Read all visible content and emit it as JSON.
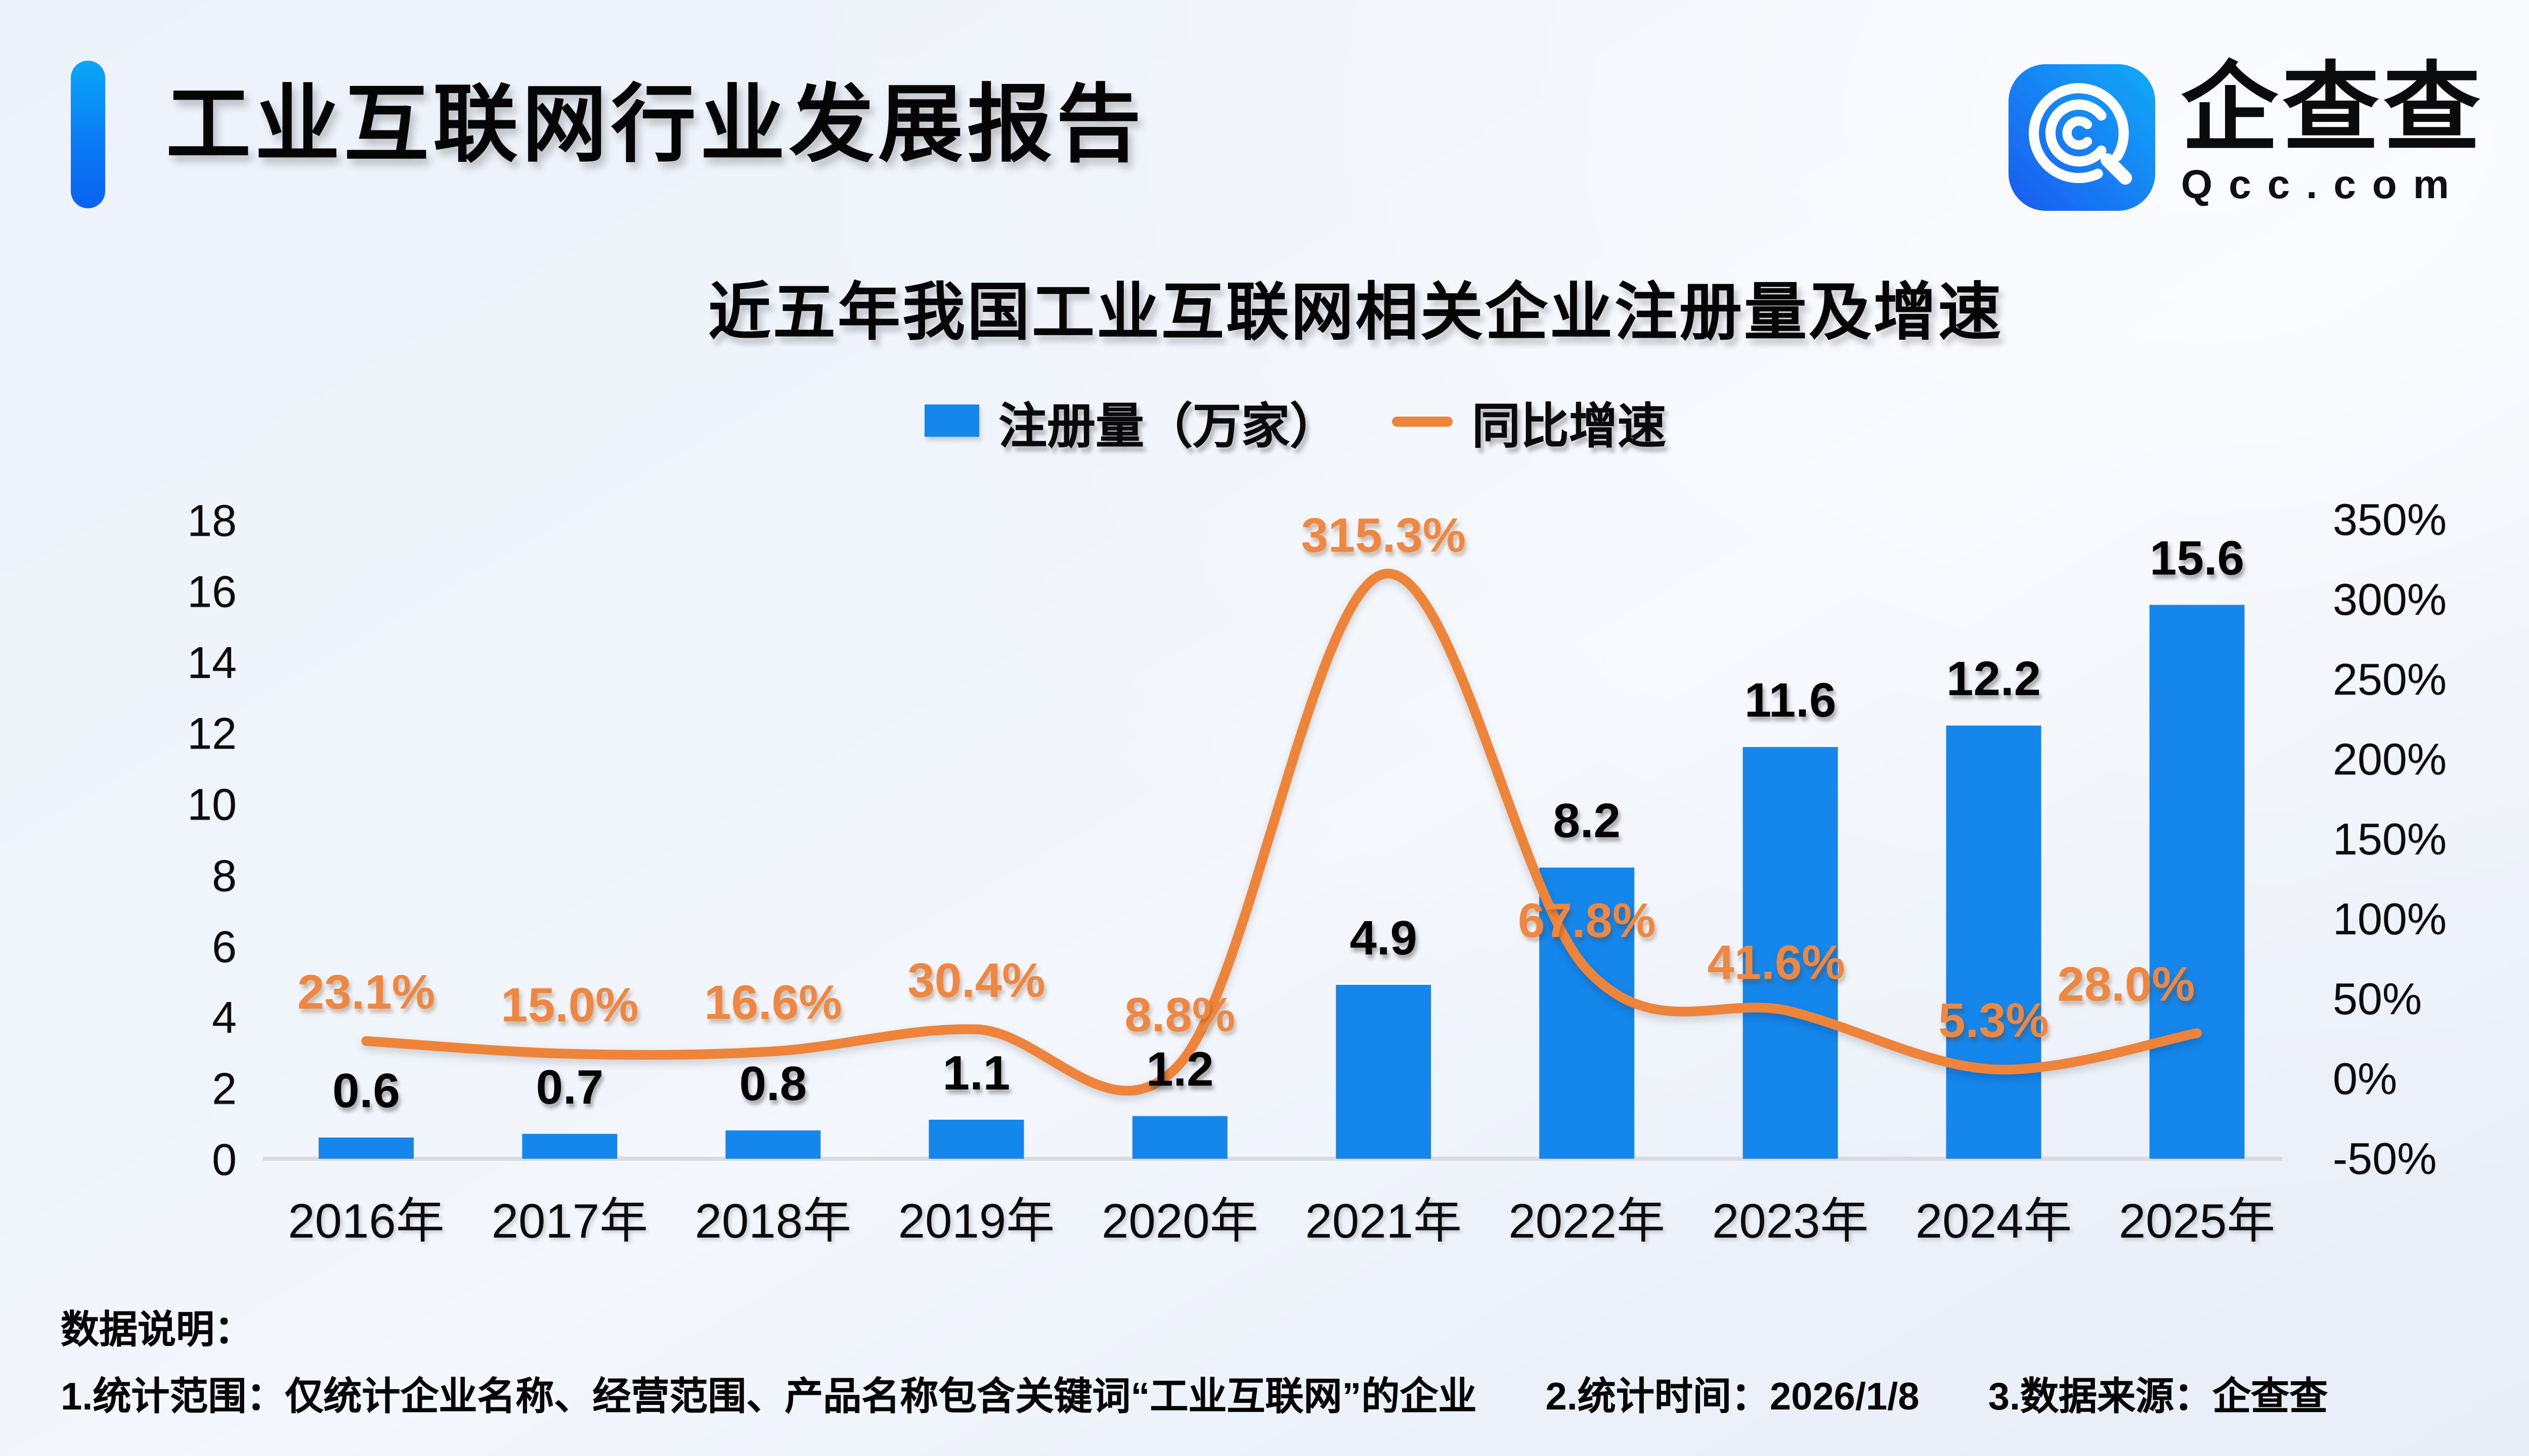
{
  "header": {
    "title": "工业互联网行业发展报告"
  },
  "logo": {
    "name": "企查查",
    "domain": "Qcc.com"
  },
  "chart_data": {
    "type": "combo-bar-line",
    "title": "近五年我国工业互联网相关企业注册量及增速",
    "categories": [
      "2016年",
      "2017年",
      "2018年",
      "2019年",
      "2020年",
      "2021年",
      "2022年",
      "2023年",
      "2024年",
      "2025年"
    ],
    "series": [
      {
        "name": "注册量（万家）",
        "type": "bar",
        "axis": "left",
        "color": "#1586EC",
        "values": [
          0.6,
          0.7,
          0.8,
          1.1,
          1.2,
          4.9,
          8.2,
          11.6,
          12.2,
          15.6
        ],
        "labels": [
          "0.6",
          "0.7",
          "0.8",
          "1.1",
          "1.2",
          "4.9",
          "8.2",
          "11.6",
          "12.2",
          "15.6"
        ]
      },
      {
        "name": "同比增速",
        "type": "line",
        "axis": "right",
        "color": "#ED8439",
        "label_color": "#ED8742",
        "values": [
          23.1,
          15.0,
          16.6,
          30.4,
          8.8,
          315.3,
          67.8,
          41.6,
          5.3,
          28.0
        ],
        "labels": [
          "23.1%",
          "15.0%",
          "16.6%",
          "30.4%",
          "8.8%",
          "315.3%",
          "67.8%",
          "41.6%",
          "5.3%",
          "28.0%"
        ]
      }
    ],
    "left_axis": {
      "min": 0,
      "max": 18,
      "step": 2
    },
    "right_axis": {
      "min": -50,
      "max": 350,
      "step": 50,
      "suffix": "%"
    },
    "legend_position": "top-center",
    "grid": false
  },
  "footer": {
    "label": "数据说明：",
    "notes": [
      "1.统计范围：仅统计企业名称、经营范围、产品名称包含关键词“工业互联网”的企业",
      "2.统计时间：2026/1/8",
      "3.数据来源：企查查"
    ]
  },
  "colors": {
    "bar": "#1586EC",
    "line": "#ED8439",
    "accent_top": "#0AA6F8",
    "accent_bottom": "#0A62F1",
    "axis_line": "#D9DBDE",
    "background": "#EEF2FA",
    "text": "#050506"
  }
}
